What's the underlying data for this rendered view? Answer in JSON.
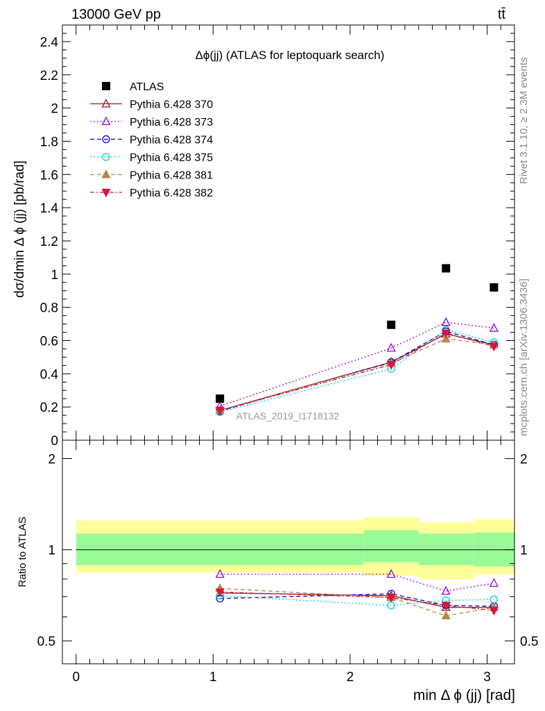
{
  "header": {
    "energy_label": "13000 GeV pp",
    "process_label": "tt̄"
  },
  "side_labels": {
    "rivet": "Rivet 3.1.10, ≥ 2.3M events",
    "mcplots": "mcplots.cern.ch [arXiv:1306.3436]"
  },
  "colors": {
    "ATLAS": "#000000",
    "p370": "#8b1a1a",
    "p373": "#9400d3",
    "p374": "#0000cd",
    "p375": "#00ced1",
    "p381": "#b8864b",
    "p382": "#dc143c",
    "band_inner": "#98fb98",
    "band_outer": "#ffff99"
  },
  "chart_data": [
    {
      "type": "scatter",
      "title": "Δϕ(jj) (ATLAS for leptoquark search)",
      "ylabel": "dσ/dmin Δ ϕ (jj) [pb/rad]",
      "xlim": [
        -0.1,
        3.2
      ],
      "ylim": [
        0,
        2.5
      ],
      "yticks": [
        "0",
        "0.2",
        "0.4",
        "0.6",
        "0.8",
        "1",
        "1.2",
        "1.4",
        "1.6",
        "1.8",
        "2",
        "2.2",
        "2.4"
      ],
      "watermark": "ATLAS_2019_I1718132",
      "legend_placement": "top-left",
      "x": [
        1.05,
        2.3,
        2.7,
        3.05
      ],
      "series": [
        {
          "name": "ATLAS",
          "values": [
            0.25,
            0.695,
            1.035,
            0.92
          ],
          "marker": "square-filled",
          "line": "none"
        },
        {
          "name": "Pythia 6.428 370",
          "values": [
            0.18,
            0.47,
            0.64,
            0.575
          ],
          "marker": "triangle-up-open",
          "line": "solid"
        },
        {
          "name": "Pythia 6.428 373",
          "values": [
            0.205,
            0.555,
            0.71,
            0.675
          ],
          "marker": "triangle-up-open",
          "line": "dotted"
        },
        {
          "name": "Pythia 6.428 374",
          "values": [
            0.175,
            0.47,
            0.655,
            0.575
          ],
          "marker": "circle-open",
          "line": "dashed"
        },
        {
          "name": "Pythia 6.428 375",
          "values": [
            0.17,
            0.43,
            0.665,
            0.59
          ],
          "marker": "circle-open",
          "line": "dotted"
        },
        {
          "name": "Pythia 6.428 381",
          "values": [
            0.18,
            0.465,
            0.61,
            0.575
          ],
          "marker": "triangle-up-filled",
          "line": "dashed"
        },
        {
          "name": "Pythia 6.428 382",
          "values": [
            0.18,
            0.455,
            0.645,
            0.565
          ],
          "marker": "triangle-down-filled",
          "line": "dashdot"
        }
      ]
    },
    {
      "type": "scatter",
      "ylabel": "Ratio to ATLAS",
      "xlabel": "min Δ ϕ (jj) [rad]",
      "xlim": [
        -0.1,
        3.2
      ],
      "ylim": [
        0.42,
        2.3
      ],
      "log_y": true,
      "xticks": [
        "0",
        "1",
        "2",
        "3"
      ],
      "yticks": [
        "0.5",
        "1",
        "2"
      ],
      "bands": {
        "x_edges": [
          0,
          2.1,
          2.5,
          2.9,
          3.2
        ],
        "inner": [
          [
            0.89,
            1.13
          ],
          [
            0.91,
            1.16
          ],
          [
            0.89,
            1.13
          ],
          [
            0.88,
            1.14
          ]
        ],
        "outer": [
          [
            0.84,
            1.25
          ],
          [
            0.82,
            1.28
          ],
          [
            0.8,
            1.23
          ],
          [
            0.83,
            1.26
          ]
        ]
      },
      "x": [
        1.05,
        2.3,
        2.7,
        3.05
      ],
      "series": [
        {
          "name": "Pythia 6.428 370",
          "values": [
            0.72,
            0.705,
            0.645,
            0.645
          ]
        },
        {
          "name": "Pythia 6.428 373",
          "values": [
            0.83,
            0.83,
            0.73,
            0.775
          ]
        },
        {
          "name": "Pythia 6.428 374",
          "values": [
            0.69,
            0.715,
            0.655,
            0.65
          ]
        },
        {
          "name": "Pythia 6.428 375",
          "values": [
            0.705,
            0.655,
            0.68,
            0.685
          ]
        },
        {
          "name": "Pythia 6.428 381",
          "values": [
            0.745,
            0.695,
            0.605,
            0.645
          ]
        },
        {
          "name": "Pythia 6.428 382",
          "values": [
            0.725,
            0.695,
            0.655,
            0.63
          ]
        }
      ]
    }
  ]
}
